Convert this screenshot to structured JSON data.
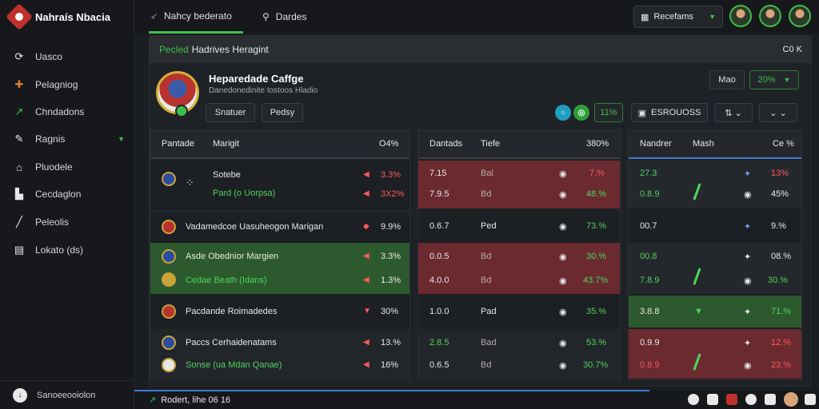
{
  "app": {
    "name": "Nahraís Nbacia"
  },
  "sidebar": {
    "items": [
      {
        "label": "Uasco",
        "icon": "refresh-icon"
      },
      {
        "label": "Pelagniog",
        "icon": "puzzle-icon"
      },
      {
        "label": "Chndadons",
        "icon": "trend-icon"
      },
      {
        "label": "Ragnis",
        "icon": "edit-icon"
      },
      {
        "label": "Pluodele",
        "icon": "home-icon"
      },
      {
        "label": "Cecdaglon",
        "icon": "layout-icon"
      },
      {
        "label": "Peleolis",
        "icon": "pencil-icon"
      },
      {
        "label": "Lokato (ds)",
        "icon": "table-icon"
      }
    ],
    "footer": "Sanoeeooiolon"
  },
  "topbar": {
    "tab1": "Nahcy bederato",
    "tab2": "Dardes",
    "dropdown": "Recefams",
    "colors": {
      "accent": "#3cc04a"
    }
  },
  "panel": {
    "header_green": "Pecled",
    "header_text": "Hadrives Heragint",
    "header_right": "C0 K",
    "match_title": "Heparedade Caffge",
    "match_sub": "Danedonedinite tostoos Hladio",
    "btn_snatuer": "Snatuer",
    "btn_pedsy": "Pedsy",
    "btn_mao": "Mao",
    "btn_pct": "20%",
    "pill_pct": "11%",
    "btn_esrouoss": "ESROUOSS"
  },
  "table1": {
    "headers": [
      "Pantade",
      "Marigit",
      "O4%"
    ],
    "rows": [
      {
        "name": "Sotebe",
        "sub": "Pard (o Uorpsa)",
        "v1": "3.3%",
        "v2": "3X2%"
      },
      {
        "name": "Vadamedcoe Uasuheogon Marigan",
        "v1": "9.9%"
      },
      {
        "name": "Asde Obednior Margien",
        "sub": "Cedae Beath (Idans)",
        "v1": "3.3%",
        "v2": "1.3%"
      },
      {
        "name": "Pacdande Roimadedes",
        "v1": "30%"
      },
      {
        "name": "Paccs Cerhaidenatams",
        "sub": "Sonse (ua Mdan Qanae)",
        "v1": "13.%",
        "v2": "16%"
      }
    ]
  },
  "table2": {
    "headers": [
      "Dantads",
      "Tiefe",
      "380%"
    ],
    "rows": [
      {
        "a": "7.15",
        "b": "Bal",
        "c": "7.%"
      },
      {
        "a": "7.9.5",
        "b": "Bd",
        "c": "48.%"
      },
      {
        "a": "0.6.7",
        "b": "Ped",
        "c": "73.%"
      },
      {
        "a": "0.0.5",
        "b": "Bd",
        "c": "30.%"
      },
      {
        "a": "4.0.0",
        "b": "Bd",
        "c": "43.7%"
      },
      {
        "a": "1.0.0",
        "b": "Pad",
        "c": "35.%"
      },
      {
        "a": "2.8.5",
        "b": "Bad",
        "c": "53.%"
      },
      {
        "a": "0.6.5",
        "b": "Bd",
        "c": "30.7%"
      }
    ]
  },
  "table3": {
    "headers": [
      "Nandrer",
      "Mash",
      "Ce %"
    ],
    "rows": [
      {
        "a": "27.3",
        "c": "13%"
      },
      {
        "a": "0.8.9",
        "c": "45%"
      },
      {
        "a": "00.7",
        "c": "9.%"
      },
      {
        "a": "00.8",
        "c": "08.%"
      },
      {
        "a": "7.8.9",
        "c": "30.%"
      },
      {
        "a": "3.8.8",
        "c": "71.%"
      },
      {
        "a": "0.9.9",
        "c": "12.%"
      },
      {
        "a": "0.8.9",
        "c": "23.%"
      }
    ]
  },
  "bottombar": {
    "text": "Rodert, lihe 06 16"
  }
}
